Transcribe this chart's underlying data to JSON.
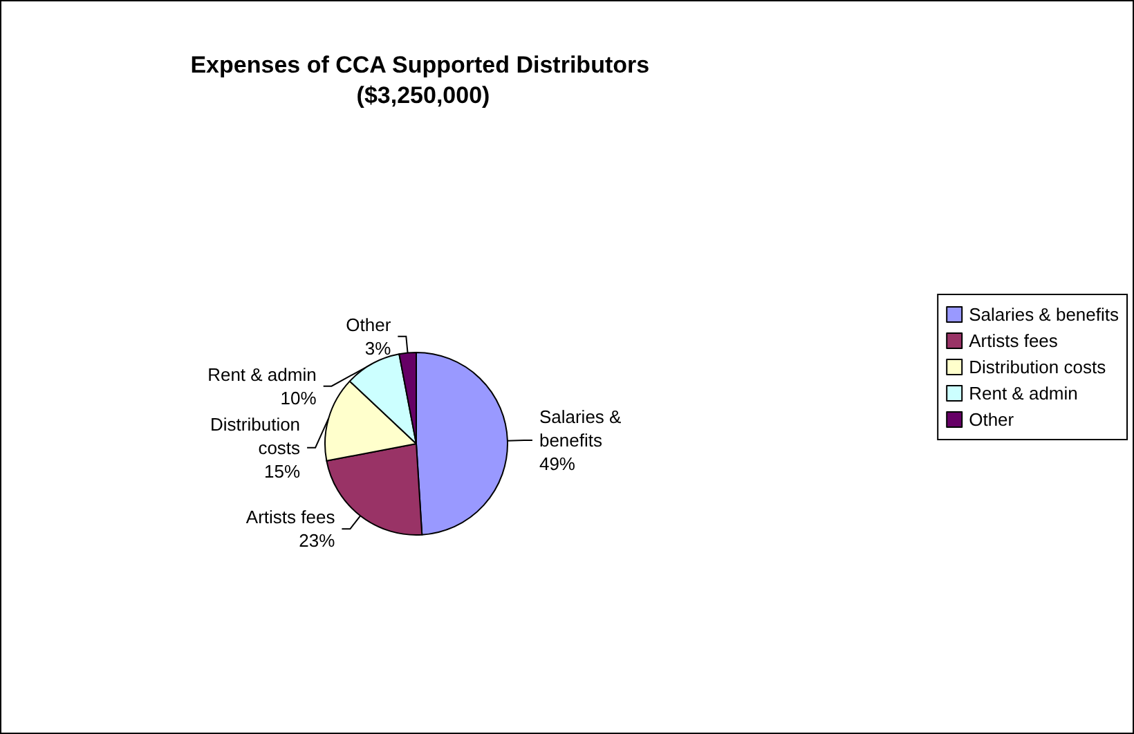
{
  "chart_data": {
    "type": "pie",
    "title": "Expenses of CCA Supported Distributors ($3,250,000)",
    "categories": [
      "Salaries & benefits",
      "Artists fees",
      "Distribution costs",
      "Rent & admin",
      "Other"
    ],
    "values": [
      49,
      23,
      15,
      10,
      3
    ],
    "value_labels": [
      "49%",
      "23%",
      "15%",
      "10%",
      "3%"
    ],
    "colors": [
      "#9999ff",
      "#993366",
      "#ffffcc",
      "#ccffff",
      "#660066"
    ],
    "legend": "right"
  }
}
